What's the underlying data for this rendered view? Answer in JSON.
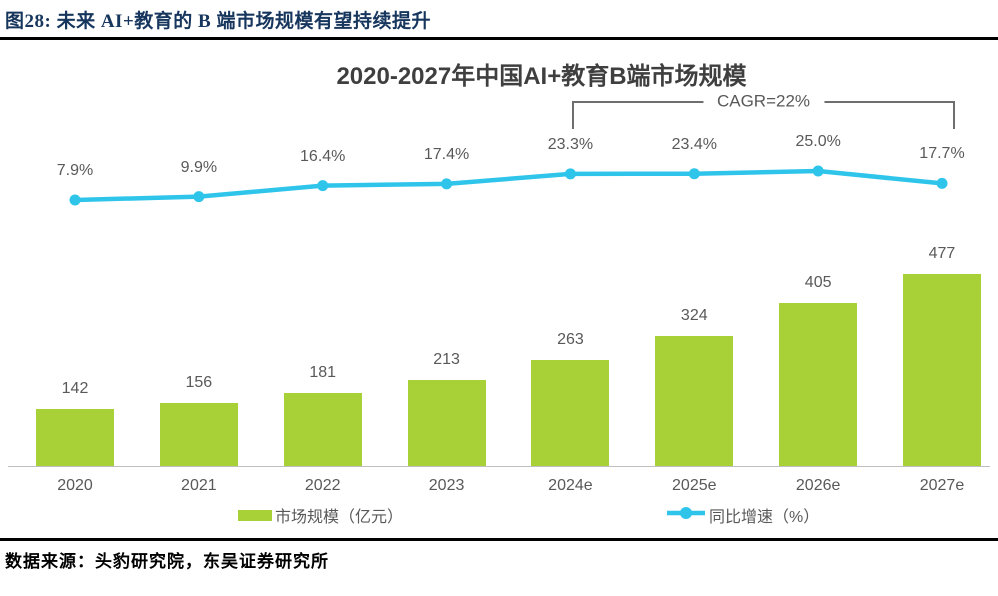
{
  "figure": {
    "caption": "图28:  未来 AI+教育的 B 端市场规模有望持续提升"
  },
  "source": {
    "text": "数据来源：头豹研究院，东吴证券研究所"
  },
  "colors": {
    "bar": "#A8D137",
    "line": "#2FC5EA",
    "label_gray": "#595959",
    "title_gray": "#3F3F3F",
    "caption_navy": "#17365D",
    "bracket_gray": "#6E6E6E"
  },
  "chart_data": {
    "type": "bar",
    "title": "2020-2027年中国AI+教育B端市场规模",
    "categories": [
      "2020",
      "2021",
      "2022",
      "2023",
      "2024e",
      "2025e",
      "2026e",
      "2027e"
    ],
    "series": [
      {
        "name": "市场规模（亿元）",
        "type": "bar",
        "values": [
          142,
          156,
          181,
          213,
          263,
          324,
          405,
          477
        ],
        "labels": [
          "142",
          "156",
          "181",
          "213",
          "263",
          "324",
          "405",
          "477"
        ],
        "color": "#A8D137"
      },
      {
        "name": "同比增速（%）",
        "type": "line",
        "values": [
          7.9,
          9.9,
          16.4,
          17.4,
          23.3,
          23.4,
          25.0,
          17.7
        ],
        "labels": [
          "7.9%",
          "9.9%",
          "16.4%",
          "17.4%",
          "23.3%",
          "23.4%",
          "25.0%",
          "17.7%"
        ],
        "color": "#2FC5EA"
      }
    ],
    "annotation": {
      "label": "CAGR=22%",
      "span": [
        "2024e",
        "2027e"
      ]
    },
    "legend": [
      "市场规模（亿元）",
      "同比增速（%）"
    ],
    "legend_position": "bottom",
    "grid": false,
    "xlabel": "",
    "ylabel": ""
  }
}
